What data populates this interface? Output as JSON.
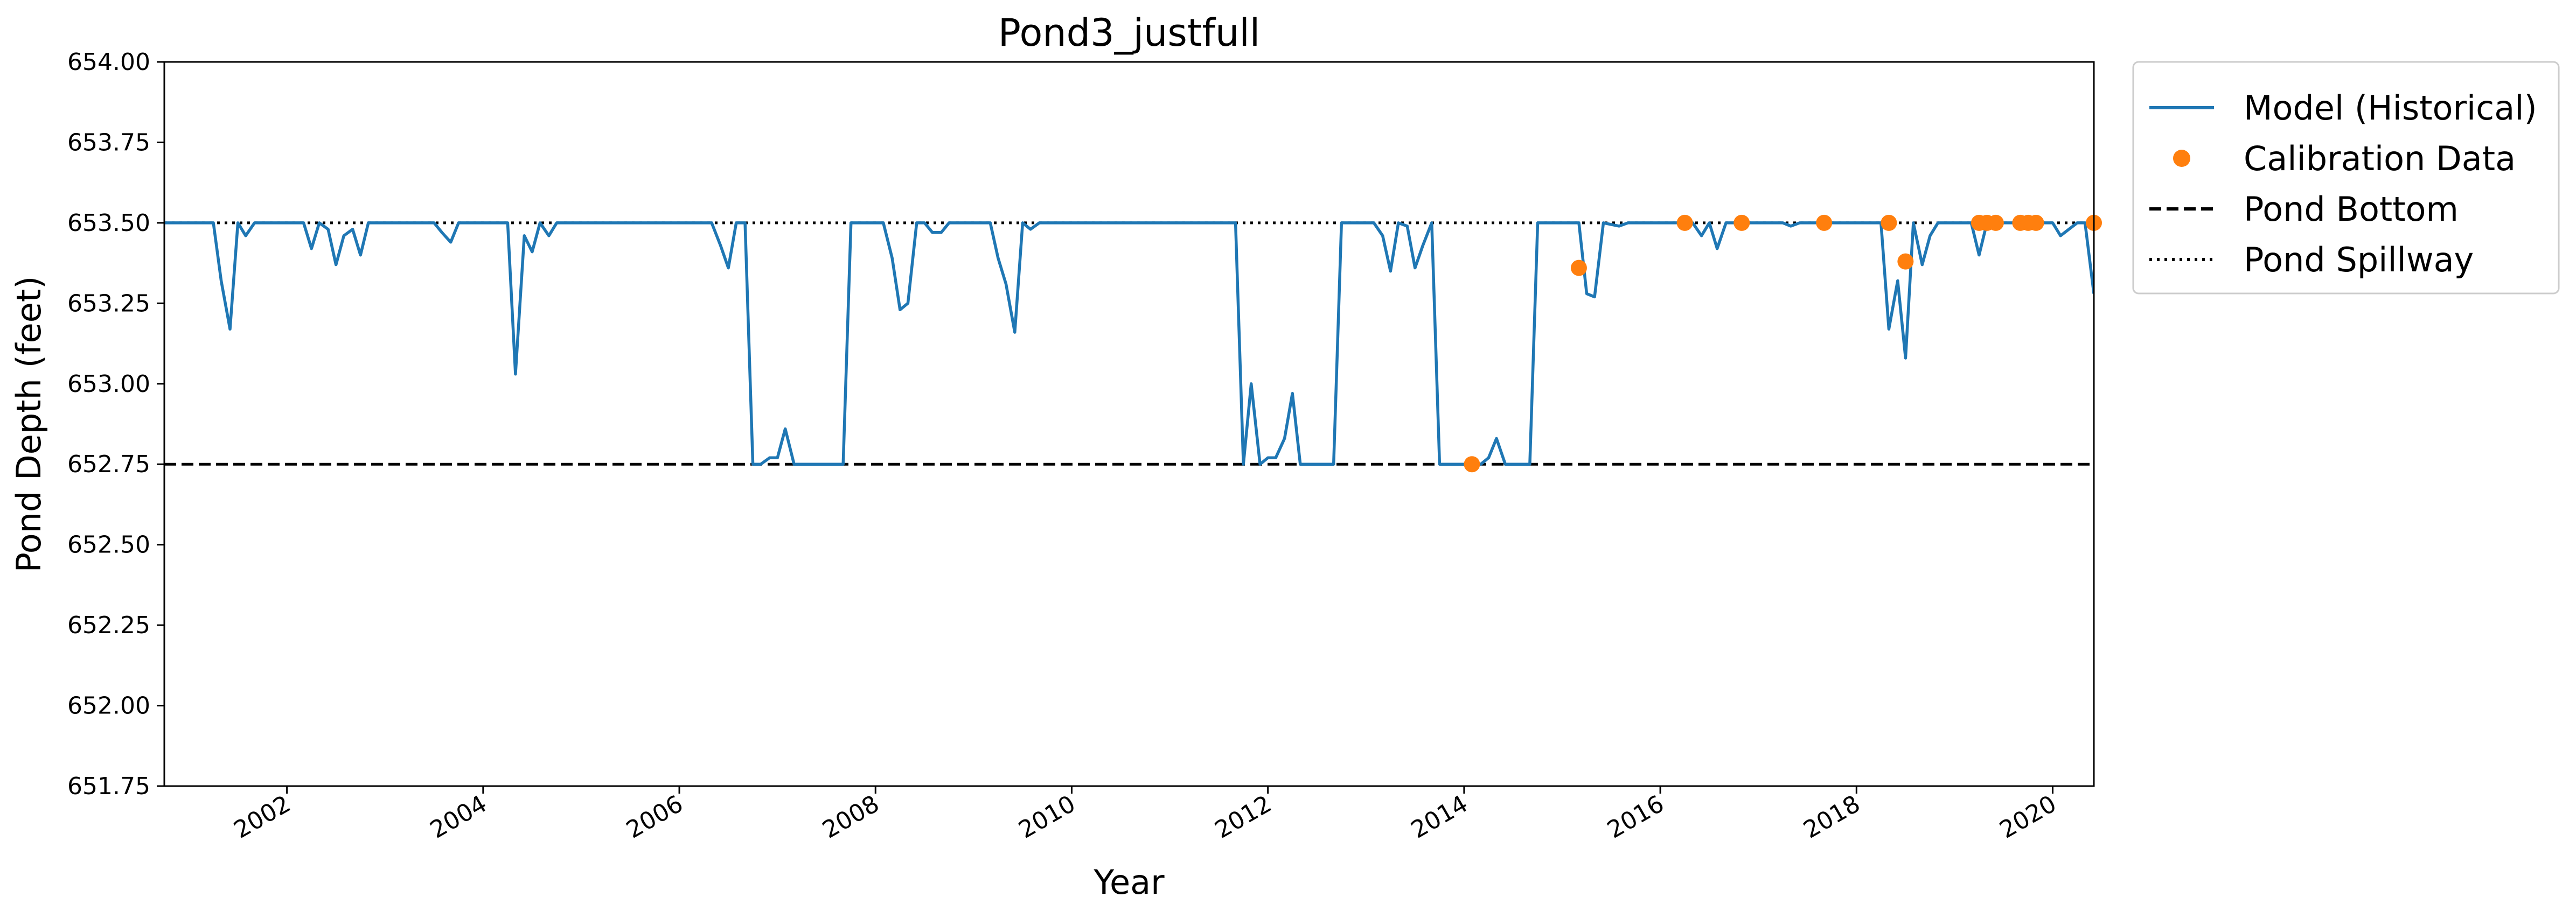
{
  "chart_data": {
    "type": "line",
    "title": "Pond3_justfull",
    "xlabel": "Year",
    "ylabel": "Pond Depth (feet)",
    "xlim": [
      2000.75,
      2020.42
    ],
    "ylim": [
      651.75,
      654.0
    ],
    "x_ticks": [
      2002,
      2004,
      2006,
      2008,
      2010,
      2012,
      2014,
      2016,
      2018,
      2020
    ],
    "x_tick_labels": [
      "2002",
      "2004",
      "2006",
      "2008",
      "2010",
      "2012",
      "2014",
      "2016",
      "2018",
      "2020"
    ],
    "y_ticks": [
      651.75,
      652.0,
      652.25,
      652.5,
      652.75,
      653.0,
      653.25,
      653.5,
      653.75,
      654.0
    ],
    "y_tick_labels": [
      "651.75",
      "652.00",
      "652.25",
      "652.50",
      "652.75",
      "653.00",
      "653.25",
      "653.50",
      "653.75",
      "654.00"
    ],
    "grid": false,
    "legend_position": "outside-right-top",
    "series": [
      {
        "name": "Model (Historical)",
        "kind": "line",
        "color": "#1f77b4",
        "x": [
          2000.75,
          2001.25,
          2001.33,
          2001.42,
          2001.5,
          2001.58,
          2001.67,
          2002.0,
          2002.17,
          2002.25,
          2002.33,
          2002.42,
          2002.5,
          2002.58,
          2002.67,
          2002.75,
          2002.83,
          2002.92,
          2003.5,
          2003.58,
          2003.67,
          2003.75,
          2003.83,
          2004.17,
          2004.25,
          2004.33,
          2004.42,
          2004.5,
          2004.58,
          2004.67,
          2004.75,
          2006.33,
          2006.42,
          2006.5,
          2006.58,
          2006.67,
          2006.75,
          2006.83,
          2006.92,
          2007.0,
          2007.08,
          2007.17,
          2007.25,
          2007.67,
          2007.75,
          2008.08,
          2008.17,
          2008.25,
          2008.33,
          2008.42,
          2008.5,
          2008.58,
          2008.67,
          2008.75,
          2008.83,
          2009.17,
          2009.25,
          2009.33,
          2009.42,
          2009.5,
          2009.58,
          2009.67,
          2009.75,
          2011.67,
          2011.75,
          2011.83,
          2011.92,
          2012.0,
          2012.08,
          2012.17,
          2012.25,
          2012.33,
          2012.42,
          2012.67,
          2012.75,
          2013.08,
          2013.17,
          2013.25,
          2013.33,
          2013.42,
          2013.5,
          2013.58,
          2013.67,
          2013.75,
          2014.17,
          2014.25,
          2014.33,
          2014.42,
          2014.58,
          2014.67,
          2014.75,
          2015.08,
          2015.17,
          2015.25,
          2015.33,
          2015.42,
          2015.58,
          2015.67,
          2016.25,
          2016.33,
          2016.42,
          2016.5,
          2016.58,
          2016.67,
          2016.75,
          2017.25,
          2017.33,
          2017.42,
          2018.17,
          2018.25,
          2018.33,
          2018.42,
          2018.5,
          2018.58,
          2018.67,
          2018.75,
          2018.83,
          2019.0,
          2019.17,
          2019.25,
          2019.33,
          2019.42,
          2019.92,
          2020.0,
          2020.08,
          2020.25,
          2020.33,
          2020.42
        ],
        "y": [
          653.5,
          653.5,
          653.32,
          653.17,
          653.5,
          653.46,
          653.5,
          653.5,
          653.5,
          653.42,
          653.5,
          653.48,
          653.37,
          653.46,
          653.48,
          653.4,
          653.5,
          653.5,
          653.5,
          653.47,
          653.44,
          653.5,
          653.5,
          653.5,
          653.5,
          653.03,
          653.46,
          653.41,
          653.5,
          653.46,
          653.5,
          653.5,
          653.43,
          653.36,
          653.5,
          653.5,
          652.75,
          652.75,
          652.77,
          652.77,
          652.86,
          652.75,
          652.75,
          652.75,
          653.5,
          653.5,
          653.39,
          653.23,
          653.25,
          653.5,
          653.5,
          653.47,
          653.47,
          653.5,
          653.5,
          653.5,
          653.39,
          653.31,
          653.16,
          653.5,
          653.48,
          653.5,
          653.5,
          653.5,
          652.75,
          653.0,
          652.75,
          652.77,
          652.77,
          652.83,
          652.97,
          652.75,
          652.75,
          652.75,
          653.5,
          653.5,
          653.46,
          653.35,
          653.5,
          653.49,
          653.36,
          653.43,
          653.5,
          652.75,
          652.75,
          652.77,
          652.83,
          652.75,
          652.75,
          652.75,
          653.5,
          653.5,
          653.5,
          653.28,
          653.27,
          653.5,
          653.49,
          653.5,
          653.5,
          653.5,
          653.46,
          653.5,
          653.42,
          653.5,
          653.5,
          653.5,
          653.49,
          653.5,
          653.5,
          653.5,
          653.17,
          653.32,
          653.08,
          653.5,
          653.37,
          653.46,
          653.5,
          653.5,
          653.5,
          653.4,
          653.5,
          653.5,
          653.5,
          653.5,
          653.46,
          653.5,
          653.5,
          653.28
        ]
      },
      {
        "name": "Calibration Data",
        "kind": "scatter",
        "color": "#ff7f0e",
        "x": [
          2014.08,
          2015.17,
          2016.25,
          2016.83,
          2017.67,
          2018.33,
          2018.5,
          2019.25,
          2019.33,
          2019.42,
          2019.67,
          2019.75,
          2019.83,
          2020.42
        ],
        "y": [
          652.75,
          653.36,
          653.5,
          653.5,
          653.5,
          653.5,
          653.38,
          653.5,
          653.5,
          653.5,
          653.5,
          653.5,
          653.5,
          653.5
        ]
      },
      {
        "name": "Pond Bottom",
        "kind": "hline",
        "color": "#000000",
        "style": "dashed",
        "y_value": 652.75
      },
      {
        "name": "Pond Spillway",
        "kind": "hline",
        "color": "#000000",
        "style": "dotted",
        "y_value": 653.5
      }
    ]
  }
}
